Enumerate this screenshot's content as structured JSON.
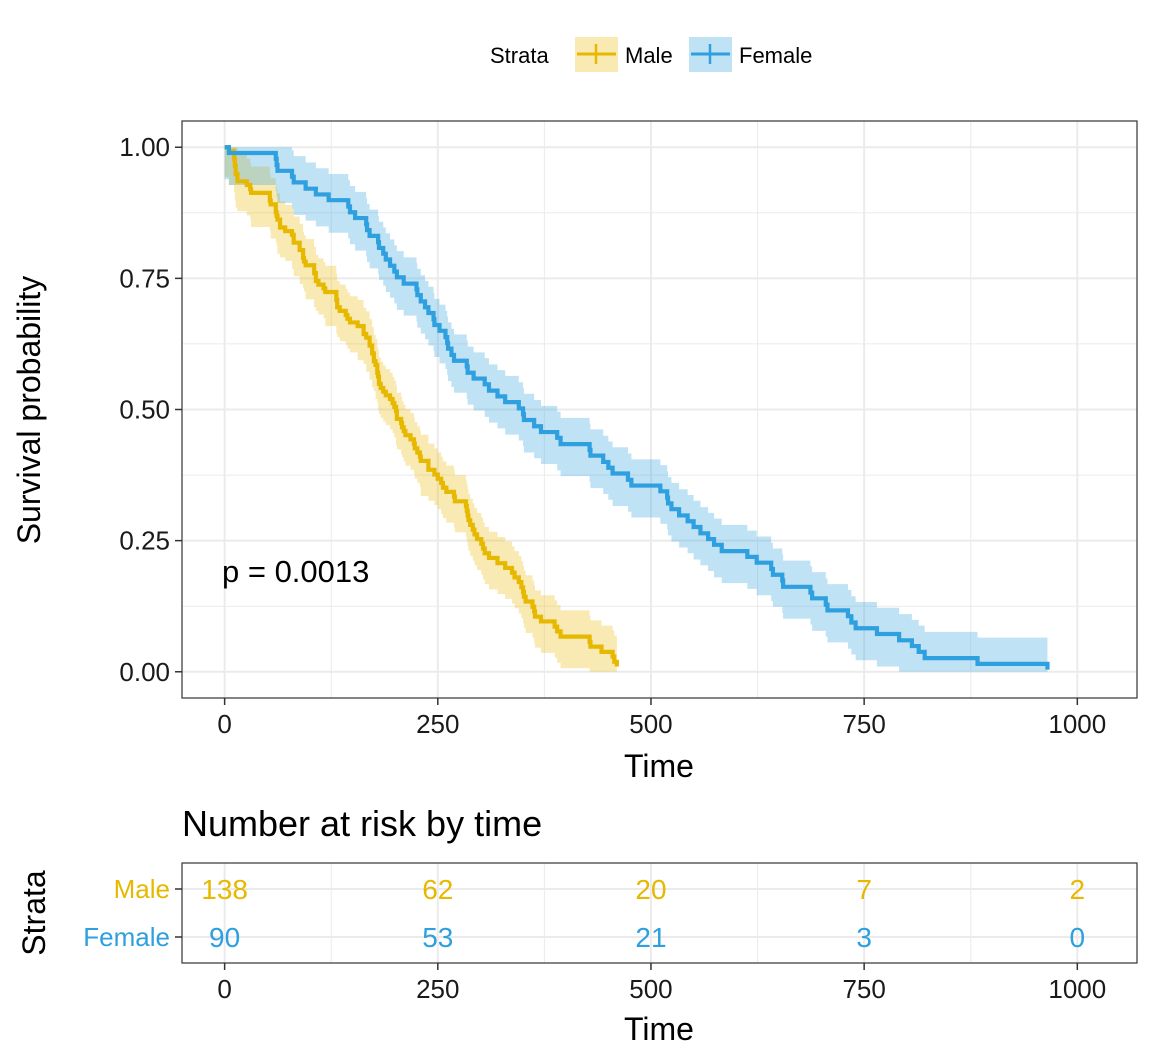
{
  "colors": {
    "male": "#E7B800",
    "female": "#2E9FDF",
    "grid": "#EBEBEB",
    "panel_border": "#333333",
    "tick": "#333333"
  },
  "legend": {
    "title": "Strata",
    "items": [
      {
        "label": "Male",
        "color": "#E7B800"
      },
      {
        "label": "Female",
        "color": "#2E9FDF"
      }
    ]
  },
  "chart_data": {
    "type": "line",
    "subtype": "kaplan-meier survival curve",
    "xlabel": "Time",
    "ylabel": "Survival probability",
    "xlim": [
      -50,
      1070
    ],
    "ylim": [
      -0.05,
      1.05
    ],
    "x_ticks": [
      0,
      250,
      500,
      750,
      1000
    ],
    "x_tick_labels": [
      "0",
      "250",
      "500",
      "750",
      "1000"
    ],
    "y_ticks": [
      0,
      0.25,
      0.5,
      0.75,
      1.0
    ],
    "y_tick_labels": [
      "0.00",
      "0.25",
      "0.50",
      "0.75",
      "1.00"
    ],
    "grid": true,
    "annotation": {
      "text": "p = 0.0013",
      "x": 0,
      "y": 0.19
    },
    "series": [
      {
        "name": "Male",
        "color": "#E7B800",
        "steps": [
          [
            0,
            1.0
          ],
          [
            5,
            0.993
          ],
          [
            11,
            0.978
          ],
          [
            12,
            0.964
          ],
          [
            13,
            0.949
          ],
          [
            15,
            0.935
          ],
          [
            26,
            0.928
          ],
          [
            30,
            0.92
          ],
          [
            31,
            0.913
          ],
          [
            53,
            0.898
          ],
          [
            54,
            0.891
          ],
          [
            60,
            0.876
          ],
          [
            61,
            0.869
          ],
          [
            62,
            0.862
          ],
          [
            65,
            0.847
          ],
          [
            71,
            0.84
          ],
          [
            79,
            0.833
          ],
          [
            81,
            0.818
          ],
          [
            88,
            0.804
          ],
          [
            92,
            0.789
          ],
          [
            93,
            0.782
          ],
          [
            95,
            0.775
          ],
          [
            105,
            0.76
          ],
          [
            107,
            0.745
          ],
          [
            110,
            0.738
          ],
          [
            116,
            0.731
          ],
          [
            118,
            0.724
          ],
          [
            131,
            0.709
          ],
          [
            132,
            0.695
          ],
          [
            135,
            0.688
          ],
          [
            142,
            0.68
          ],
          [
            144,
            0.673
          ],
          [
            147,
            0.666
          ],
          [
            156,
            0.659
          ],
          [
            163,
            0.644
          ],
          [
            166,
            0.637
          ],
          [
            170,
            0.622
          ],
          [
            173,
            0.607
          ],
          [
            175,
            0.592
          ],
          [
            177,
            0.585
          ],
          [
            179,
            0.57
          ],
          [
            180,
            0.563
          ],
          [
            181,
            0.549
          ],
          [
            183,
            0.541
          ],
          [
            186,
            0.534
          ],
          [
            189,
            0.527
          ],
          [
            194,
            0.52
          ],
          [
            197,
            0.512
          ],
          [
            199,
            0.505
          ],
          [
            201,
            0.497
          ],
          [
            202,
            0.482
          ],
          [
            207,
            0.474
          ],
          [
            208,
            0.466
          ],
          [
            210,
            0.459
          ],
          [
            212,
            0.451
          ],
          [
            218,
            0.443
          ],
          [
            222,
            0.435
          ],
          [
            223,
            0.426
          ],
          [
            226,
            0.418
          ],
          [
            229,
            0.41
          ],
          [
            230,
            0.402
          ],
          [
            239,
            0.385
          ],
          [
            246,
            0.376
          ],
          [
            250,
            0.368
          ],
          [
            254,
            0.36
          ],
          [
            256,
            0.351
          ],
          [
            260,
            0.343
          ],
          [
            269,
            0.334
          ],
          [
            270,
            0.325
          ],
          [
            283,
            0.316
          ],
          [
            284,
            0.307
          ],
          [
            285,
            0.298
          ],
          [
            286,
            0.289
          ],
          [
            288,
            0.28
          ],
          [
            291,
            0.271
          ],
          [
            293,
            0.262
          ],
          [
            296,
            0.253
          ],
          [
            301,
            0.244
          ],
          [
            303,
            0.235
          ],
          [
            305,
            0.226
          ],
          [
            310,
            0.217
          ],
          [
            320,
            0.207
          ],
          [
            329,
            0.198
          ],
          [
            337,
            0.189
          ],
          [
            340,
            0.18
          ],
          [
            345,
            0.171
          ],
          [
            348,
            0.161
          ],
          [
            350,
            0.152
          ],
          [
            351,
            0.143
          ],
          [
            353,
            0.134
          ],
          [
            361,
            0.124
          ],
          [
            363,
            0.115
          ],
          [
            364,
            0.105
          ],
          [
            371,
            0.096
          ],
          [
            387,
            0.086
          ],
          [
            390,
            0.077
          ],
          [
            394,
            0.067
          ],
          [
            428,
            0.057
          ],
          [
            429,
            0.048
          ],
          [
            442,
            0.038
          ],
          [
            455,
            0.029
          ],
          [
            457,
            0.019
          ],
          [
            460,
            0.01
          ]
        ],
        "censor_x": [],
        "ci": []
      },
      {
        "name": "Female",
        "color": "#2E9FDF",
        "steps": [
          [
            0,
            1.0
          ],
          [
            5,
            0.989
          ],
          [
            60,
            0.978
          ],
          [
            61,
            0.966
          ],
          [
            62,
            0.955
          ],
          [
            79,
            0.944
          ],
          [
            81,
            0.933
          ],
          [
            95,
            0.921
          ],
          [
            107,
            0.91
          ],
          [
            122,
            0.899
          ],
          [
            145,
            0.887
          ],
          [
            147,
            0.876
          ],
          [
            153,
            0.865
          ],
          [
            166,
            0.853
          ],
          [
            167,
            0.842
          ],
          [
            170,
            0.831
          ],
          [
            180,
            0.819
          ],
          [
            181,
            0.808
          ],
          [
            186,
            0.797
          ],
          [
            189,
            0.786
          ],
          [
            194,
            0.774
          ],
          [
            199,
            0.763
          ],
          [
            202,
            0.752
          ],
          [
            210,
            0.74
          ],
          [
            225,
            0.729
          ],
          [
            226,
            0.718
          ],
          [
            230,
            0.706
          ],
          [
            235,
            0.695
          ],
          [
            239,
            0.684
          ],
          [
            245,
            0.672
          ],
          [
            246,
            0.661
          ],
          [
            252,
            0.65
          ],
          [
            259,
            0.638
          ],
          [
            261,
            0.627
          ],
          [
            262,
            0.616
          ],
          [
            266,
            0.604
          ],
          [
            269,
            0.593
          ],
          [
            284,
            0.582
          ],
          [
            285,
            0.57
          ],
          [
            292,
            0.559
          ],
          [
            305,
            0.548
          ],
          [
            310,
            0.536
          ],
          [
            320,
            0.525
          ],
          [
            329,
            0.514
          ],
          [
            345,
            0.502
          ],
          [
            350,
            0.491
          ],
          [
            351,
            0.48
          ],
          [
            363,
            0.468
          ],
          [
            371,
            0.457
          ],
          [
            390,
            0.446
          ],
          [
            394,
            0.434
          ],
          [
            428,
            0.423
          ],
          [
            429,
            0.412
          ],
          [
            444,
            0.4
          ],
          [
            450,
            0.389
          ],
          [
            455,
            0.378
          ],
          [
            473,
            0.366
          ],
          [
            477,
            0.355
          ],
          [
            511,
            0.344
          ],
          [
            519,
            0.332
          ],
          [
            520,
            0.321
          ],
          [
            524,
            0.31
          ],
          [
            533,
            0.298
          ],
          [
            543,
            0.287
          ],
          [
            550,
            0.276
          ],
          [
            558,
            0.264
          ],
          [
            567,
            0.253
          ],
          [
            574,
            0.242
          ],
          [
            583,
            0.23
          ],
          [
            613,
            0.219
          ],
          [
            624,
            0.208
          ],
          [
            641,
            0.196
          ],
          [
            643,
            0.185
          ],
          [
            654,
            0.174
          ],
          [
            655,
            0.162
          ],
          [
            687,
            0.151
          ],
          [
            689,
            0.14
          ],
          [
            705,
            0.128
          ],
          [
            707,
            0.117
          ],
          [
            731,
            0.106
          ],
          [
            735,
            0.094
          ],
          [
            740,
            0.083
          ],
          [
            765,
            0.072
          ],
          [
            791,
            0.06
          ],
          [
            806,
            0.049
          ],
          [
            814,
            0.038
          ],
          [
            821,
            0.026
          ],
          [
            883,
            0.015
          ],
          [
            965,
            0.004
          ]
        ],
        "censor_x": [],
        "ci": []
      }
    ]
  },
  "risk_table": {
    "title": "Number at risk by time",
    "ylabel": "Strata",
    "xlabel": "Time",
    "x_ticks": [
      0,
      250,
      500,
      750,
      1000
    ],
    "x_tick_labels": [
      "0",
      "250",
      "500",
      "750",
      "1000"
    ],
    "rows": [
      {
        "strata": "Male",
        "color": "#E7B800",
        "counts": [
          "138",
          "62",
          "20",
          "7",
          "2"
        ]
      },
      {
        "strata": "Female",
        "color": "#2E9FDF",
        "counts": [
          "90",
          "53",
          "21",
          "3",
          "0"
        ]
      }
    ]
  }
}
